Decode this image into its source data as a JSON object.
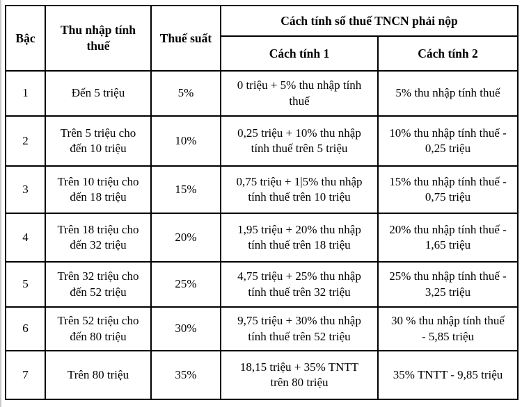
{
  "colors": {
    "background": "#ffffff",
    "border": "#000000",
    "text": "#000000",
    "edge_strip": "#c9c9c9"
  },
  "table": {
    "header": {
      "bac": "Bậc",
      "income": "Thu nhập tính\nthuế",
      "rate": "Thuế suất",
      "method_group": "Cách tính số thuế TNCN phải nộp",
      "method1": "Cách tính 1",
      "method2": "Cách tính 2"
    },
    "rows": [
      {
        "bac": "1",
        "income": "Đến 5 triệu",
        "rate": "5%",
        "method1": "0 triệu + 5% thu nhập tính\nthuế",
        "method2": "5% thu nhập tính thuế"
      },
      {
        "bac": "2",
        "income": "Trên 5 triệu cho\nđến 10 triệu",
        "rate": "10%",
        "method1": "0,25 triệu + 10% thu nhập\ntính thuế trên 5 triệu",
        "method2": "10% thu nhập tính thuế -\n0,25 triệu"
      },
      {
        "bac": "3",
        "income": "Trên 10 triệu cho\nđến 18 triệu",
        "rate": "15%",
        "method1": "0,75 triệu + 1|5% thu nhập\ntính thuế trên 10 triệu",
        "method2": "15% thu nhập tính thuế -\n0,75 triệu"
      },
      {
        "bac": "4",
        "income": "Trên 18 triệu cho\nđến 32 triệu",
        "rate": "20%",
        "method1": "1,95 triệu + 20% thu nhập\ntính thuế trên 18 triệu",
        "method2": "20% thu nhập tính thuế -\n1,65 triệu"
      },
      {
        "bac": "5",
        "income": "Trên 32 triệu cho\nđến 52 triệu",
        "rate": "25%",
        "method1": "4,75 triệu + 25% thu nhập\ntính thuế trên 32 triệu",
        "method2": "25% thu nhập tính thuế -\n3,25 triệu"
      },
      {
        "bac": "6",
        "income": "Trên 52 triệu cho\nđến 80 triệu",
        "rate": "30%",
        "method1": "9,75 triệu + 30% thu nhập\ntính thuế trên 52 triệu",
        "method2": "30 % thu nhập tính thuế\n- 5,85 triệu"
      },
      {
        "bac": "7",
        "income": "Trên 80 triệu",
        "rate": "35%",
        "method1": "18,15 triệu + 35% TNTT\ntrên 80 triệu",
        "method2": "35% TNTT - 9,85 triệu"
      }
    ]
  }
}
